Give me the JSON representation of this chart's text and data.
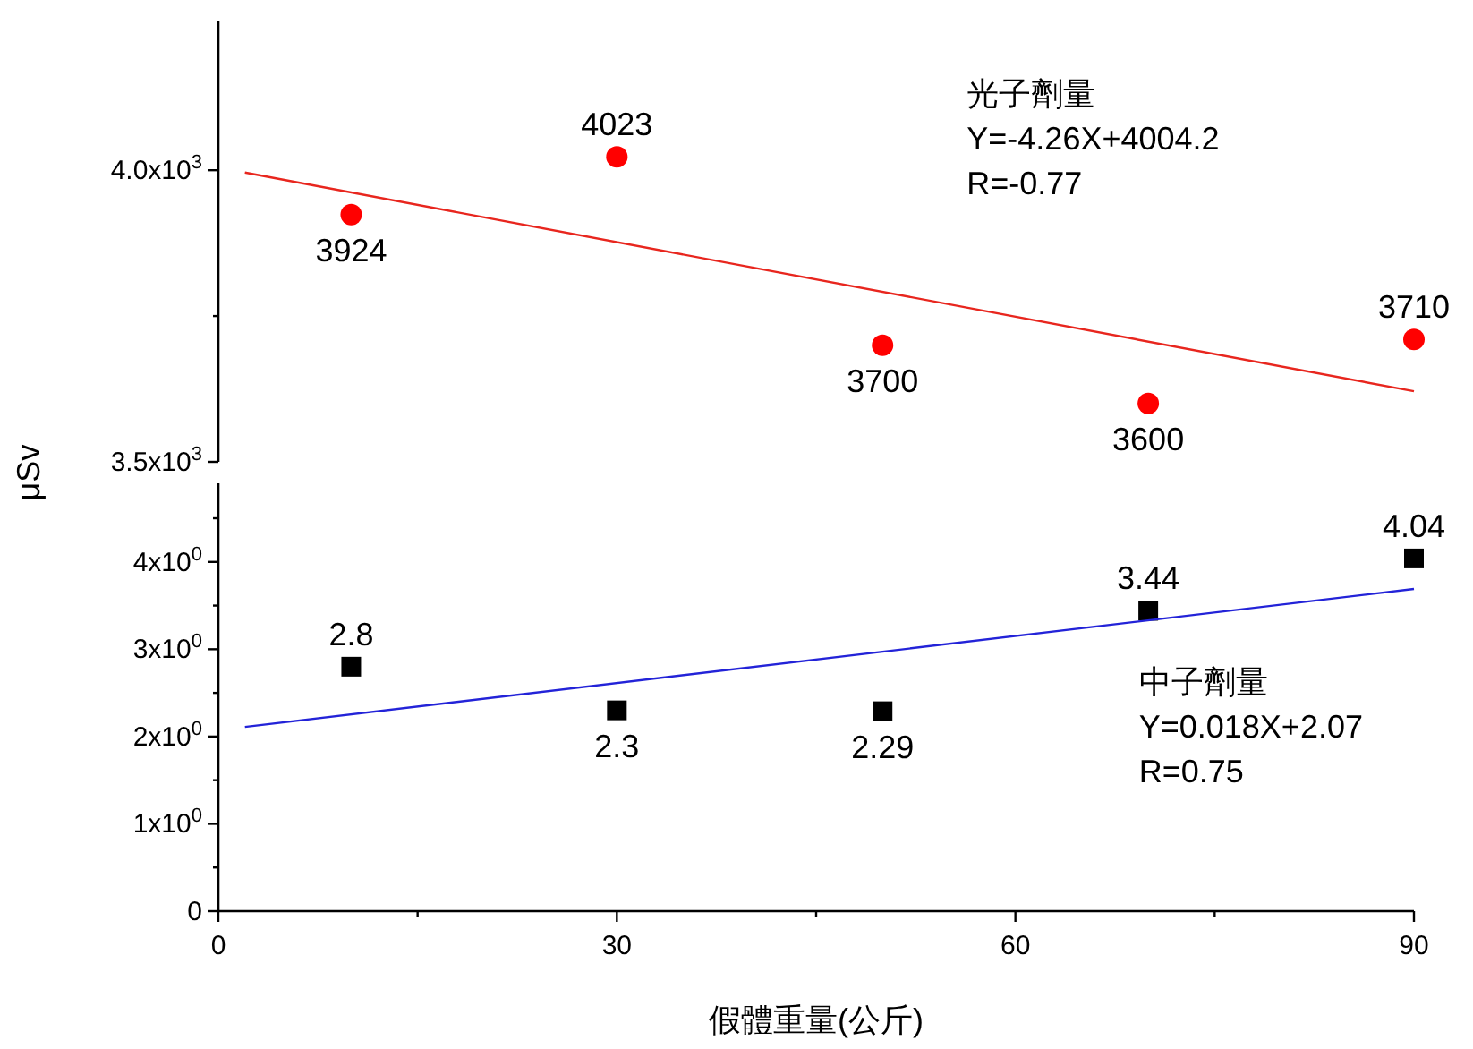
{
  "chart_data": [
    {
      "type": "scatter",
      "xlim": [
        0,
        90
      ],
      "ylim": [
        3500,
        4255
      ],
      "tick_labels": "y",
      "yticks": [
        {
          "value": 3500,
          "label": "3.5x10$^{3}$"
        },
        {
          "value": 3750,
          "label": null
        },
        {
          "value": 4000,
          "label": "4.0x10$^{3}$"
        }
      ],
      "annotations": [
        "光子劑量",
        "Y=-4.26X+4004.2",
        "R=-0.77"
      ],
      "series": [
        {
          "marker": "circle",
          "color": "#ff0000",
          "x": [
            10,
            30,
            50,
            70,
            90
          ],
          "values": [
            3924,
            4023,
            3700,
            3600,
            3710
          ],
          "value_labels": [
            "3924",
            "4023",
            "3700",
            "3600",
            "3710"
          ]
        },
        {
          "type": "line",
          "color": "#e8261e",
          "x": [
            2,
            90
          ],
          "values": [
            3996,
            3621
          ]
        }
      ]
    },
    {
      "type": "scatter",
      "xlim": [
        0,
        90
      ],
      "ylim": [
        0,
        4.9
      ],
      "xlabel": "假體重量(公斤)",
      "ylabel": "μSv",
      "xticks": [
        0,
        {
          "value": 15,
          "label": null
        },
        30,
        {
          "value": 45,
          "label": null
        },
        60,
        {
          "value": 75,
          "label": null
        },
        90
      ],
      "yticks": [
        0,
        {
          "value": 0.5,
          "label": null
        },
        {
          "value": 1,
          "label": "1x10$^{0}$"
        },
        {
          "value": 1.5,
          "label": null
        },
        {
          "value": 2,
          "label": "2x10$^{0}$"
        },
        {
          "value": 2.5,
          "label": null
        },
        {
          "value": 3,
          "label": "3x10$^{0}$"
        },
        {
          "value": 3.5,
          "label": null
        },
        {
          "value": 4,
          "label": "4x10$^{0}$"
        },
        {
          "value": 4.5,
          "label": null
        }
      ],
      "annotations": [
        "中子劑量",
        "Y=0.018X+2.07",
        "R=0.75"
      ],
      "series": [
        {
          "marker": "square",
          "color": "#000000",
          "x": [
            10,
            30,
            50,
            70,
            90
          ],
          "values": [
            2.8,
            2.3,
            2.29,
            3.44,
            4.04
          ],
          "value_labels": [
            "2.8",
            "2.3",
            "2.29",
            "3.44",
            "4.04"
          ]
        },
        {
          "type": "line",
          "color": "#2323d8",
          "x": [
            2,
            90
          ],
          "values": [
            2.11,
            3.69
          ]
        }
      ]
    }
  ]
}
